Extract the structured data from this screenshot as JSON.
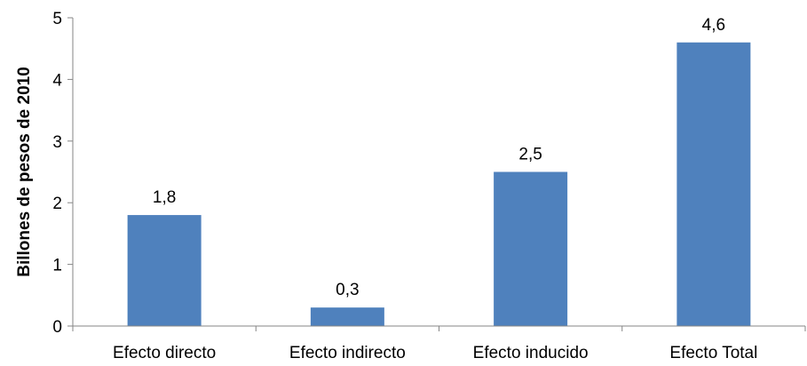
{
  "chart_data": {
    "type": "bar",
    "title": "",
    "xlabel": "",
    "ylabel": "Billones de pesos de 2010",
    "categories": [
      "Efecto directo",
      "Efecto indirecto",
      "Efecto inducido",
      "Efecto Total"
    ],
    "values": [
      1.8,
      0.3,
      2.5,
      4.6
    ],
    "data_labels": [
      "1,8",
      "0,3",
      "2,5",
      "4,6"
    ],
    "ylim": [
      0,
      5
    ],
    "yticks": [
      0,
      1,
      2,
      3,
      4,
      5
    ],
    "ytick_labels": [
      "0",
      "1",
      "2",
      "3",
      "4",
      "5"
    ],
    "grid": false,
    "legend": "none",
    "bar_color": "#4F81BD",
    "axis_color": "#868686"
  }
}
